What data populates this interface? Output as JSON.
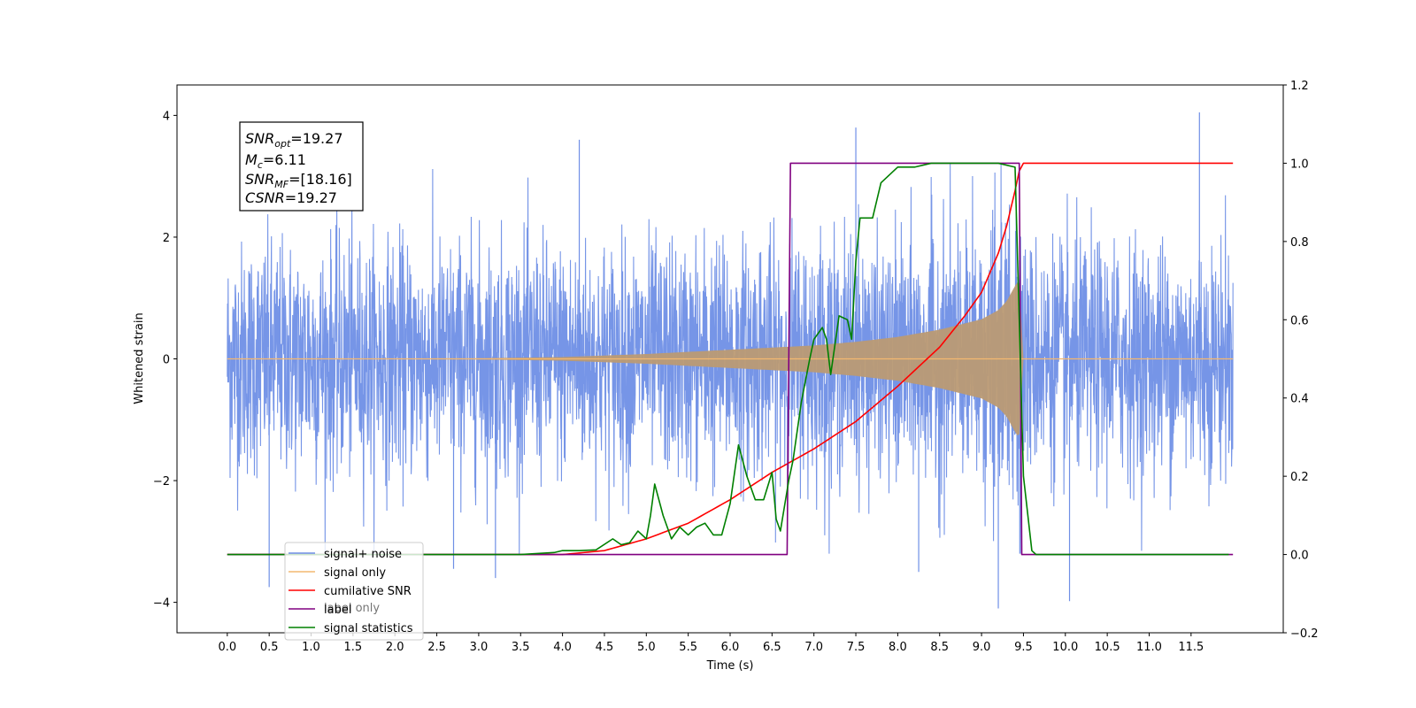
{
  "chart_data": {
    "type": "line",
    "xlabel": "Time (s)",
    "ylabel": "Whitened strain",
    "xlim": [
      -0.6,
      12.6
    ],
    "ylim": [
      -4.5,
      4.5
    ],
    "y2lim": [
      -0.2,
      1.2
    ],
    "x_ticks": [
      "0.0",
      "0.5",
      "1.0",
      "1.5",
      "2.0",
      "2.5",
      "3.0",
      "3.5",
      "4.0",
      "4.5",
      "5.0",
      "5.5",
      "6.0",
      "6.5",
      "7.0",
      "7.5",
      "8.0",
      "8.5",
      "9.0",
      "9.5",
      "10.0",
      "10.5",
      "11.0",
      "11.5"
    ],
    "y_ticks": [
      "4",
      "2",
      "0",
      "−2",
      "−4"
    ],
    "y2_ticks": [
      "1.2",
      "1.0",
      "0.8",
      "0.6",
      "0.4",
      "0.2",
      "0.0",
      "−0.2"
    ],
    "annotation": {
      "snr_opt": {
        "main": "SNR",
        "sub": "opt",
        "value": "=19.27"
      },
      "mc": {
        "main": "M",
        "sub": "c",
        "value": "=6.11"
      },
      "snr_mf": {
        "main": "SNR",
        "sub": "MF",
        "value": "=[18.16]"
      },
      "csnr": {
        "main": "CSNR",
        "value": "=19.27"
      }
    },
    "legend": {
      "placement": "lower-left",
      "entries": [
        "signal+ noise",
        "signal only",
        "cumilative SNR",
        "label",
        "signal statistics"
      ],
      "ghost_entry": "label only"
    },
    "colors": {
      "noise": "#6f8fe6",
      "signal": "#f4b870",
      "signal_fill": "#bb9a74",
      "snr": "#ff0000",
      "label": "#800080",
      "stats": "#008000"
    },
    "series": [
      {
        "name": "signal+ noise",
        "axis": "left",
        "x_range": [
          0.0,
          12.0
        ],
        "envelope_sigma": 1.0,
        "extreme_peaks": [
          [
            0.5,
            -3.75
          ],
          [
            2.7,
            -3.45
          ],
          [
            3.2,
            -3.6
          ],
          [
            4.2,
            3.6
          ],
          [
            7.5,
            3.8
          ],
          [
            8.25,
            -3.5
          ],
          [
            9.2,
            -4.1
          ],
          [
            10.05,
            -3.98
          ],
          [
            11.6,
            4.05
          ]
        ]
      },
      {
        "name": "signal only",
        "axis": "left",
        "x_range": [
          0.0,
          12.0
        ],
        "envelope_x": [
          0.0,
          3.0,
          4.0,
          5.0,
          6.0,
          7.0,
          7.5,
          8.0,
          8.5,
          9.0,
          9.2,
          9.3,
          9.4,
          9.45,
          9.5
        ],
        "envelope_y": [
          0.0,
          0.01,
          0.03,
          0.08,
          0.15,
          0.22,
          0.28,
          0.36,
          0.48,
          0.65,
          0.8,
          0.95,
          1.2,
          1.3,
          0.0
        ]
      },
      {
        "name": "cumilative SNR",
        "axis": "right",
        "x": [
          0.0,
          4.0,
          4.5,
          5.0,
          5.5,
          6.0,
          6.5,
          7.0,
          7.5,
          8.0,
          8.5,
          8.8,
          9.0,
          9.2,
          9.3,
          9.4,
          9.45,
          9.5,
          12.0
        ],
        "y": [
          0.0,
          0.0,
          0.01,
          0.04,
          0.08,
          0.14,
          0.21,
          0.27,
          0.34,
          0.43,
          0.53,
          0.61,
          0.67,
          0.77,
          0.84,
          0.93,
          0.98,
          1.0,
          1.0
        ]
      },
      {
        "name": "label",
        "axis": "right",
        "x": [
          0.0,
          6.68,
          6.72,
          9.45,
          9.48,
          12.0
        ],
        "y": [
          0.0,
          0.0,
          1.0,
          1.0,
          0.0,
          0.0
        ]
      },
      {
        "name": "signal statistics",
        "axis": "right",
        "x": [
          0.0,
          3.5,
          3.9,
          4.0,
          4.2,
          4.4,
          4.6,
          4.7,
          4.8,
          4.9,
          5.0,
          5.05,
          5.1,
          5.2,
          5.3,
          5.4,
          5.5,
          5.6,
          5.7,
          5.8,
          5.9,
          6.0,
          6.1,
          6.2,
          6.3,
          6.4,
          6.5,
          6.55,
          6.6,
          6.7,
          6.75,
          6.85,
          6.95,
          7.0,
          7.1,
          7.15,
          7.2,
          7.3,
          7.4,
          7.45,
          7.5,
          7.55,
          7.7,
          7.8,
          8.0,
          8.2,
          8.4,
          8.6,
          9.0,
          9.2,
          9.4,
          9.45,
          9.5,
          9.6,
          9.65,
          11.95
        ],
        "y": [
          0.0,
          0.0,
          0.005,
          0.01,
          0.01,
          0.012,
          0.04,
          0.025,
          0.03,
          0.06,
          0.04,
          0.1,
          0.18,
          0.1,
          0.04,
          0.07,
          0.05,
          0.07,
          0.08,
          0.05,
          0.05,
          0.13,
          0.28,
          0.2,
          0.14,
          0.14,
          0.21,
          0.09,
          0.06,
          0.19,
          0.24,
          0.39,
          0.5,
          0.55,
          0.58,
          0.55,
          0.46,
          0.61,
          0.6,
          0.55,
          0.75,
          0.86,
          0.86,
          0.95,
          0.99,
          0.99,
          1.0,
          1.0,
          1.0,
          1.0,
          0.99,
          0.6,
          0.2,
          0.01,
          0.0,
          0.0
        ]
      }
    ]
  }
}
